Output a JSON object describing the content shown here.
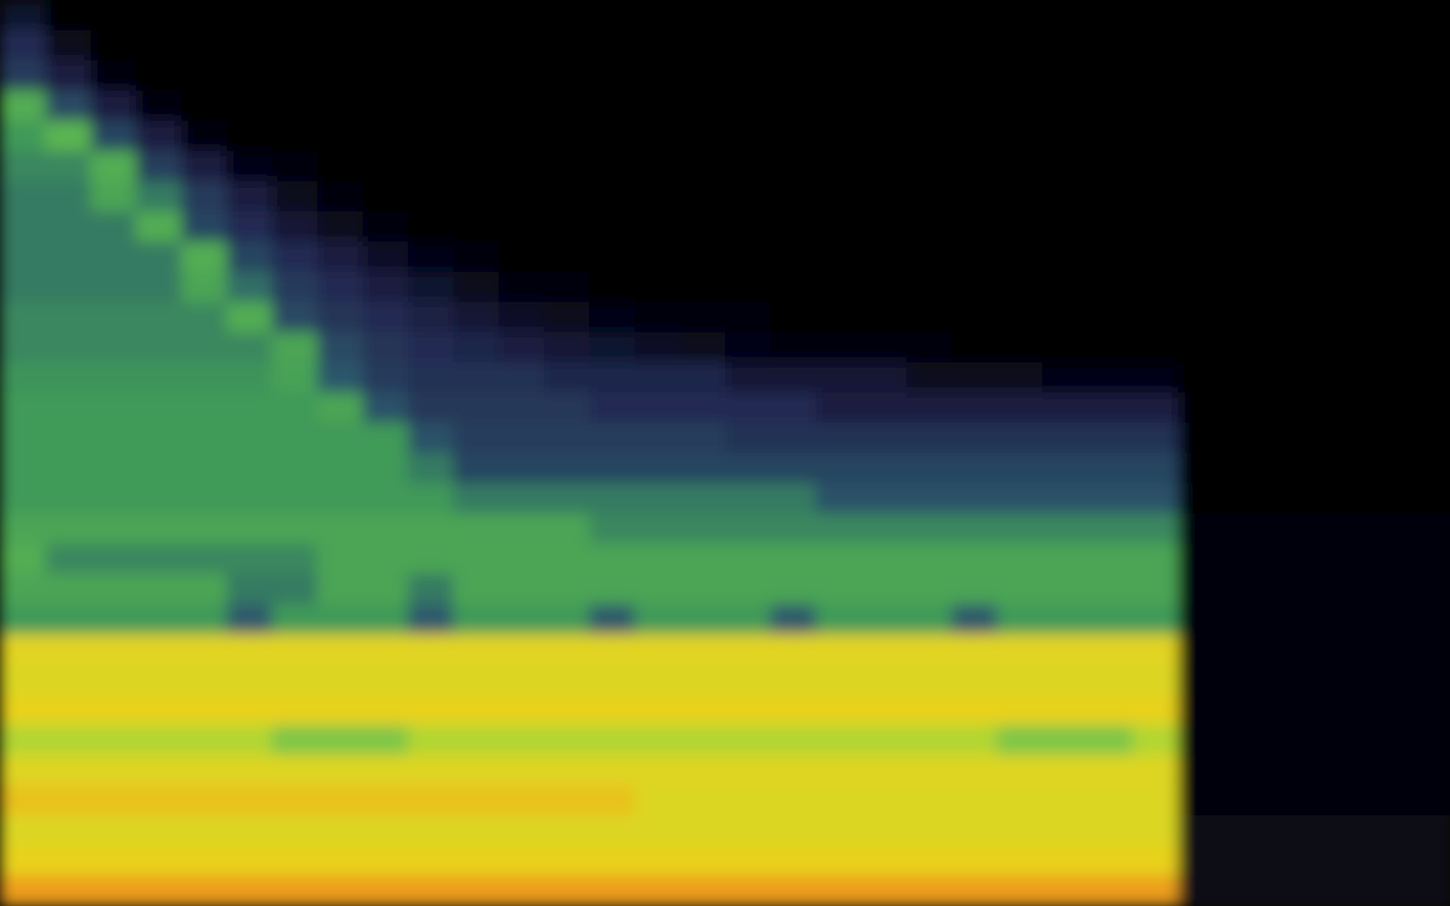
{
  "chart_data": {
    "type": "heatmap",
    "tick_labels": false,
    "zlim": [
      0,
      100
    ],
    "cells": [
      [
        20,
        0,
        0,
        0,
        0,
        0,
        0,
        0,
        0,
        0,
        0,
        0,
        0,
        0,
        0,
        0,
        0,
        0,
        0,
        0,
        0,
        0,
        0,
        0,
        0,
        0,
        0,
        0,
        0,
        0,
        0,
        0
      ],
      [
        30,
        15,
        0,
        0,
        0,
        0,
        0,
        0,
        0,
        0,
        0,
        0,
        0,
        0,
        0,
        0,
        0,
        0,
        0,
        0,
        0,
        0,
        0,
        0,
        0,
        0,
        0,
        0,
        0,
        0,
        0,
        0
      ],
      [
        35,
        25,
        10,
        0,
        0,
        0,
        0,
        0,
        0,
        0,
        0,
        0,
        0,
        0,
        0,
        0,
        0,
        0,
        0,
        0,
        0,
        0,
        0,
        0,
        0,
        0,
        0,
        0,
        0,
        0,
        0,
        0
      ],
      [
        60,
        40,
        25,
        10,
        0,
        0,
        0,
        0,
        0,
        0,
        0,
        0,
        0,
        0,
        0,
        0,
        0,
        0,
        0,
        0,
        0,
        0,
        0,
        0,
        0,
        0,
        0,
        0,
        0,
        0,
        0,
        0
      ],
      [
        55,
        62,
        38,
        25,
        10,
        0,
        0,
        0,
        0,
        0,
        0,
        0,
        0,
        0,
        0,
        0,
        0,
        0,
        0,
        0,
        0,
        0,
        0,
        0,
        0,
        0,
        0,
        0,
        0,
        0,
        0,
        0
      ],
      [
        52,
        52,
        60,
        36,
        25,
        12,
        5,
        0,
        0,
        0,
        0,
        0,
        0,
        0,
        0,
        0,
        0,
        0,
        0,
        0,
        0,
        0,
        0,
        0,
        0,
        0,
        0,
        0,
        0,
        0,
        0,
        0
      ],
      [
        50,
        50,
        58,
        50,
        35,
        25,
        15,
        6,
        0,
        0,
        0,
        0,
        0,
        0,
        0,
        0,
        0,
        0,
        0,
        0,
        0,
        0,
        0,
        0,
        0,
        0,
        0,
        0,
        0,
        0,
        0,
        0
      ],
      [
        50,
        50,
        50,
        60,
        38,
        30,
        22,
        15,
        8,
        0,
        0,
        0,
        0,
        0,
        0,
        0,
        0,
        0,
        0,
        0,
        0,
        0,
        0,
        0,
        0,
        0,
        0,
        0,
        0,
        0,
        0,
        0
      ],
      [
        50,
        50,
        50,
        50,
        60,
        38,
        30,
        25,
        18,
        12,
        6,
        0,
        0,
        0,
        0,
        0,
        0,
        0,
        0,
        0,
        0,
        0,
        0,
        0,
        0,
        0,
        0,
        0,
        0,
        0,
        0,
        0
      ],
      [
        50,
        50,
        50,
        50,
        58,
        48,
        35,
        30,
        25,
        20,
        15,
        10,
        6,
        3,
        0,
        0,
        0,
        0,
        0,
        0,
        0,
        0,
        0,
        0,
        0,
        0,
        0,
        0,
        0,
        0,
        0,
        0
      ],
      [
        52,
        52,
        52,
        52,
        52,
        60,
        40,
        33,
        30,
        26,
        22,
        18,
        15,
        12,
        10,
        7,
        4,
        0,
        0,
        0,
        0,
        0,
        0,
        0,
        0,
        0,
        0,
        0,
        0,
        0,
        0,
        0
      ],
      [
        52,
        52,
        52,
        52,
        52,
        52,
        58,
        40,
        33,
        30,
        28,
        25,
        22,
        20,
        18,
        15,
        12,
        10,
        8,
        6,
        4,
        0,
        0,
        0,
        0,
        0,
        0,
        0,
        0,
        0,
        0,
        0
      ],
      [
        54,
        54,
        54,
        54,
        54,
        54,
        57,
        44,
        35,
        32,
        32,
        32,
        28,
        28,
        28,
        28,
        22,
        22,
        22,
        22,
        16,
        16,
        16,
        12,
        12,
        12,
        0,
        0,
        0,
        0,
        0,
        0
      ],
      [
        55,
        55,
        55,
        55,
        55,
        55,
        55,
        58,
        42,
        34,
        34,
        34,
        34,
        30,
        30,
        30,
        30,
        30,
        25,
        25,
        25,
        25,
        25,
        25,
        25,
        25,
        0,
        0,
        0,
        0,
        0,
        0
      ],
      [
        55,
        55,
        55,
        55,
        55,
        55,
        55,
        55,
        55,
        42,
        36,
        36,
        36,
        36,
        36,
        36,
        32,
        32,
        32,
        32,
        32,
        32,
        32,
        32,
        32,
        32,
        0,
        0,
        0,
        0,
        0,
        0
      ],
      [
        55,
        55,
        55,
        55,
        55,
        55,
        55,
        55,
        55,
        50,
        38,
        38,
        38,
        38,
        38,
        38,
        38,
        38,
        38,
        38,
        38,
        38,
        38,
        38,
        38,
        38,
        0,
        0,
        0,
        0,
        0,
        0
      ],
      [
        55,
        55,
        55,
        55,
        55,
        55,
        55,
        55,
        55,
        55,
        50,
        50,
        50,
        50,
        50,
        50,
        50,
        50,
        42,
        42,
        42,
        42,
        42,
        42,
        42,
        42,
        0,
        0,
        0,
        0,
        0,
        0
      ],
      [
        58,
        58,
        58,
        58,
        58,
        58,
        58,
        58,
        58,
        58,
        58,
        58,
        58,
        52,
        52,
        52,
        52,
        52,
        52,
        52,
        52,
        52,
        52,
        52,
        52,
        52,
        4,
        4,
        4,
        4,
        4,
        4
      ],
      [
        60,
        52,
        52,
        52,
        52,
        52,
        52,
        58,
        58,
        58,
        58,
        58,
        58,
        58,
        58,
        58,
        58,
        58,
        58,
        58,
        58,
        58,
        58,
        58,
        58,
        58,
        4,
        4,
        4,
        4,
        4,
        4
      ],
      [
        58,
        58,
        58,
        58,
        58,
        50,
        50,
        58,
        58,
        50,
        58,
        58,
        58,
        58,
        58,
        58,
        58,
        58,
        58,
        58,
        58,
        58,
        58,
        58,
        58,
        58,
        4,
        4,
        4,
        4,
        4,
        4
      ],
      [
        55,
        55,
        55,
        55,
        55,
        45,
        55,
        55,
        55,
        45,
        55,
        55,
        55,
        45,
        55,
        55,
        55,
        45,
        55,
        55,
        55,
        45,
        55,
        55,
        55,
        55,
        8,
        8,
        8,
        8,
        8,
        8
      ],
      [
        86,
        86,
        86,
        86,
        86,
        86,
        86,
        86,
        86,
        86,
        86,
        86,
        86,
        86,
        86,
        86,
        86,
        86,
        86,
        86,
        86,
        86,
        86,
        86,
        86,
        86,
        8,
        8,
        8,
        8,
        8,
        8
      ],
      [
        84,
        84,
        84,
        84,
        84,
        84,
        84,
        84,
        84,
        84,
        84,
        84,
        84,
        84,
        84,
        84,
        84,
        84,
        84,
        84,
        84,
        84,
        84,
        84,
        84,
        84,
        8,
        8,
        8,
        8,
        8,
        8
      ],
      [
        88,
        88,
        88,
        88,
        88,
        88,
        88,
        88,
        88,
        88,
        88,
        88,
        88,
        88,
        88,
        88,
        88,
        88,
        88,
        88,
        88,
        88,
        88,
        88,
        88,
        88,
        8,
        8,
        8,
        8,
        8,
        8
      ],
      [
        75,
        75,
        75,
        75,
        75,
        75,
        68,
        68,
        68,
        75,
        75,
        75,
        75,
        75,
        75,
        75,
        75,
        75,
        75,
        75,
        75,
        75,
        68,
        68,
        68,
        75,
        8,
        8,
        8,
        8,
        8,
        8
      ],
      [
        85,
        85,
        85,
        85,
        85,
        85,
        85,
        85,
        85,
        85,
        85,
        85,
        85,
        85,
        85,
        85,
        85,
        85,
        85,
        85,
        85,
        85,
        85,
        85,
        85,
        85,
        8,
        8,
        8,
        8,
        8,
        8
      ],
      [
        90,
        90,
        90,
        90,
        90,
        90,
        90,
        90,
        90,
        90,
        90,
        90,
        90,
        90,
        84,
        84,
        84,
        84,
        84,
        84,
        84,
        84,
        84,
        84,
        84,
        84,
        8,
        8,
        8,
        8,
        8,
        8
      ],
      [
        84,
        84,
        84,
        84,
        84,
        84,
        84,
        84,
        84,
        84,
        84,
        84,
        84,
        84,
        84,
        84,
        84,
        84,
        84,
        84,
        84,
        84,
        84,
        84,
        84,
        84,
        14,
        14,
        14,
        14,
        14,
        14
      ],
      [
        88,
        88,
        88,
        88,
        88,
        88,
        88,
        88,
        88,
        88,
        88,
        88,
        88,
        88,
        88,
        88,
        88,
        88,
        88,
        88,
        88,
        88,
        88,
        88,
        88,
        88,
        14,
        14,
        14,
        14,
        14,
        14
      ],
      [
        94,
        94,
        94,
        94,
        94,
        94,
        94,
        94,
        94,
        94,
        94,
        94,
        94,
        94,
        94,
        94,
        94,
        94,
        94,
        94,
        94,
        94,
        94,
        94,
        94,
        94,
        14,
        14,
        14,
        14,
        14,
        14
      ]
    ]
  }
}
